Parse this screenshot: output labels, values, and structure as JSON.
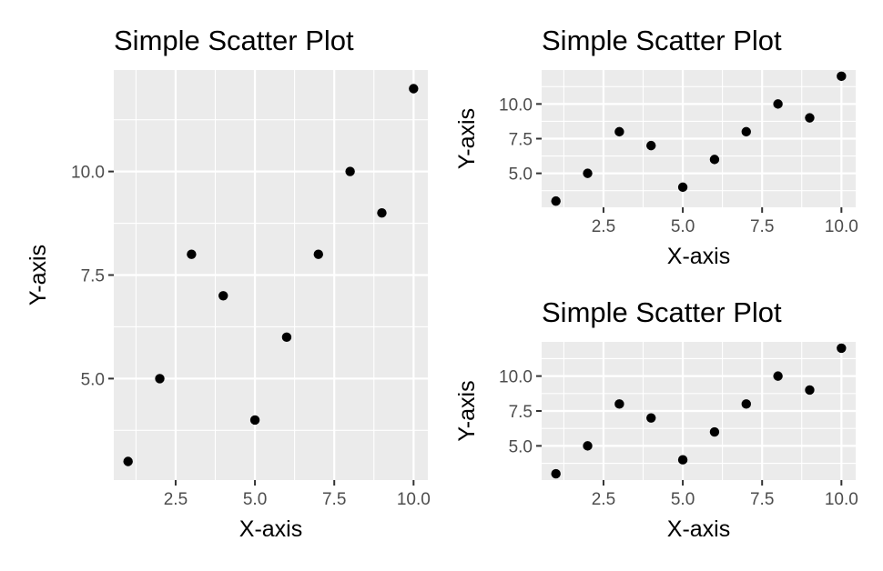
{
  "chart_data": [
    {
      "type": "scatter",
      "title": "Simple Scatter Plot",
      "xlabel": "X-axis",
      "ylabel": "Y-axis",
      "x": [
        1,
        2,
        3,
        4,
        5,
        6,
        7,
        8,
        9,
        10
      ],
      "y": [
        3,
        5,
        8,
        7,
        4,
        6,
        8,
        10,
        9,
        12
      ],
      "xlim": [
        0.55,
        10.45
      ],
      "ylim": [
        2.55,
        12.45
      ],
      "x_ticks": [
        2.5,
        5.0,
        7.5,
        10.0
      ],
      "x_tick_labels": [
        "2.5",
        "5.0",
        "7.5",
        "10.0"
      ],
      "y_ticks": [
        5.0,
        7.5,
        10.0
      ],
      "y_tick_labels": [
        "5.0",
        "7.5",
        "10.0"
      ],
      "grid": true,
      "point_color": "#000000",
      "panel_color": "#ebebeb"
    },
    {
      "type": "scatter",
      "title": "Simple Scatter Plot",
      "xlabel": "X-axis",
      "ylabel": "Y-axis",
      "x": [
        1,
        2,
        3,
        4,
        5,
        6,
        7,
        8,
        9,
        10
      ],
      "y": [
        3,
        5,
        8,
        7,
        4,
        6,
        8,
        10,
        9,
        12
      ],
      "xlim": [
        0.55,
        10.45
      ],
      "ylim": [
        2.55,
        12.45
      ],
      "x_ticks": [
        2.5,
        5.0,
        7.5,
        10.0
      ],
      "x_tick_labels": [
        "2.5",
        "5.0",
        "7.5",
        "10.0"
      ],
      "y_ticks": [
        5.0,
        7.5,
        10.0
      ],
      "y_tick_labels": [
        "5.0",
        "7.5",
        "10.0"
      ],
      "grid": true,
      "point_color": "#000000",
      "panel_color": "#ebebeb"
    },
    {
      "type": "scatter",
      "title": "Simple Scatter Plot",
      "xlabel": "X-axis",
      "ylabel": "Y-axis",
      "x": [
        1,
        2,
        3,
        4,
        5,
        6,
        7,
        8,
        9,
        10
      ],
      "y": [
        3,
        5,
        8,
        7,
        4,
        6,
        8,
        10,
        9,
        12
      ],
      "xlim": [
        0.55,
        10.45
      ],
      "ylim": [
        2.55,
        12.45
      ],
      "x_ticks": [
        2.5,
        5.0,
        7.5,
        10.0
      ],
      "x_tick_labels": [
        "2.5",
        "5.0",
        "7.5",
        "10.0"
      ],
      "y_ticks": [
        5.0,
        7.5,
        10.0
      ],
      "y_tick_labels": [
        "5.0",
        "7.5",
        "10.0"
      ],
      "grid": true,
      "point_color": "#000000",
      "panel_color": "#ebebeb"
    }
  ]
}
